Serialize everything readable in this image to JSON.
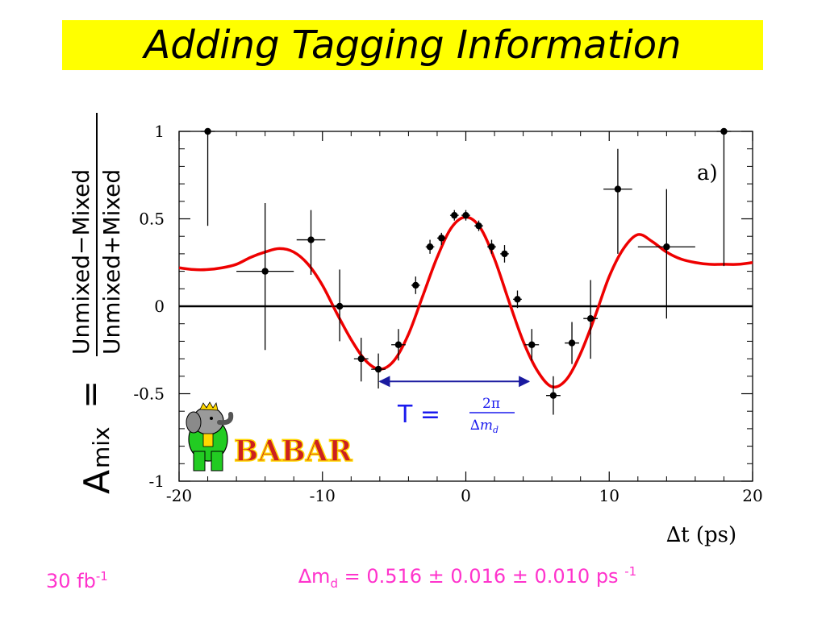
{
  "title": "Adding Tagging Information",
  "footer": {
    "luminosity": "30 fb",
    "luminosity_exp": "-1",
    "dm_symbol": "∆m",
    "dm_sub": "d",
    "dm_value": " = 0.516 ± 0.016 ± 0.010 ps ",
    "dm_exp": "-1"
  },
  "logo_text": "BaBar",
  "colors": {
    "title_bg": "#ffff00",
    "fit": "#ee0000",
    "footer": "#ff33cc",
    "period_arrow": "#1a1aa0",
    "period_text": "#1a1aee"
  },
  "chart_data": {
    "type": "scatter",
    "xlabel": "∆t (ps)",
    "ylabel_prefix": "A",
    "ylabel_sub": "mix",
    "ylabel_equals": "=",
    "ylabel_numerator": "Unmixed−Mixed",
    "ylabel_denominator": "Unmixed+Mixed",
    "panel_label": "a)",
    "xlim": [
      -20,
      20
    ],
    "ylim": [
      -1,
      1
    ],
    "xticks": [
      -20,
      -10,
      0,
      10,
      20
    ],
    "xtick_labels": [
      "-20",
      "-10",
      "0",
      "10",
      "20"
    ],
    "yticks": [
      -1,
      -0.5,
      0,
      0.5,
      1
    ],
    "ytick_labels": [
      "-1",
      "-0.5",
      "0",
      "0.5",
      "1"
    ],
    "zero_line": 0,
    "period_annotation": {
      "text": "T = 2π / ∆m_d",
      "x_start": -6,
      "x_end": 4.4,
      "y": -0.43
    },
    "points": [
      {
        "x": -18.0,
        "y": 1.0,
        "xerr": 0.5,
        "ylo": 0.46,
        "yhi": 1.0
      },
      {
        "x": -14.0,
        "y": 0.2,
        "xerr": 2.0,
        "ylo": -0.25,
        "yhi": 0.59
      },
      {
        "x": -10.8,
        "y": 0.38,
        "xerr": 1.0,
        "ylo": 0.18,
        "yhi": 0.55
      },
      {
        "x": -8.8,
        "y": 0.0,
        "xerr": 0.5,
        "ylo": -0.2,
        "yhi": 0.21
      },
      {
        "x": -7.3,
        "y": -0.3,
        "xerr": 0.5,
        "ylo": -0.43,
        "yhi": -0.18
      },
      {
        "x": -6.1,
        "y": -0.36,
        "xerr": 0.5,
        "ylo": -0.47,
        "yhi": -0.27
      },
      {
        "x": -4.7,
        "y": -0.22,
        "xerr": 0.5,
        "ylo": -0.31,
        "yhi": -0.13
      },
      {
        "x": -3.5,
        "y": 0.12,
        "xerr": 0.3,
        "ylo": 0.07,
        "yhi": 0.17
      },
      {
        "x": -2.5,
        "y": 0.34,
        "xerr": 0.3,
        "ylo": 0.3,
        "yhi": 0.38
      },
      {
        "x": -1.7,
        "y": 0.39,
        "xerr": 0.3,
        "ylo": 0.35,
        "yhi": 0.42
      },
      {
        "x": -0.8,
        "y": 0.52,
        "xerr": 0.3,
        "ylo": 0.49,
        "yhi": 0.55
      },
      {
        "x": 0.0,
        "y": 0.52,
        "xerr": 0.3,
        "ylo": 0.49,
        "yhi": 0.55
      },
      {
        "x": 0.9,
        "y": 0.46,
        "xerr": 0.3,
        "ylo": 0.43,
        "yhi": 0.49
      },
      {
        "x": 1.8,
        "y": 0.34,
        "xerr": 0.3,
        "ylo": 0.3,
        "yhi": 0.38
      },
      {
        "x": 2.7,
        "y": 0.3,
        "xerr": 0.3,
        "ylo": 0.25,
        "yhi": 0.35
      },
      {
        "x": 3.6,
        "y": 0.04,
        "xerr": 0.3,
        "ylo": -0.01,
        "yhi": 0.09
      },
      {
        "x": 4.6,
        "y": -0.22,
        "xerr": 0.5,
        "ylo": -0.31,
        "yhi": -0.13
      },
      {
        "x": 6.1,
        "y": -0.51,
        "xerr": 0.5,
        "ylo": -0.62,
        "yhi": -0.4
      },
      {
        "x": 7.4,
        "y": -0.21,
        "xerr": 0.5,
        "ylo": -0.33,
        "yhi": -0.09
      },
      {
        "x": 8.7,
        "y": -0.07,
        "xerr": 0.5,
        "ylo": -0.3,
        "yhi": 0.15
      },
      {
        "x": 10.6,
        "y": 0.67,
        "xerr": 1.0,
        "ylo": 0.3,
        "yhi": 0.9
      },
      {
        "x": 14.0,
        "y": 0.34,
        "xerr": 2.0,
        "ylo": -0.07,
        "yhi": 0.67
      },
      {
        "x": 18.0,
        "y": 1.0,
        "xerr": 0.5,
        "ylo": 0.23,
        "yhi": 1.0
      }
    ],
    "fit_curve": {
      "x": [
        -20,
        -19,
        -18,
        -17,
        -16,
        -15,
        -14,
        -13,
        -12,
        -11,
        -10,
        -9,
        -8,
        -7,
        -6,
        -5,
        -4,
        -3,
        -2,
        -1,
        0,
        1,
        2,
        3,
        4,
        5,
        6,
        7,
        8,
        9,
        10,
        11,
        12,
        13,
        14,
        15,
        16,
        17,
        18,
        19,
        20
      ],
      "y": [
        0.22,
        0.21,
        0.21,
        0.22,
        0.24,
        0.28,
        0.31,
        0.33,
        0.31,
        0.24,
        0.12,
        -0.04,
        -0.19,
        -0.31,
        -0.36,
        -0.31,
        -0.16,
        0.06,
        0.28,
        0.45,
        0.51,
        0.45,
        0.27,
        0.03,
        -0.2,
        -0.37,
        -0.46,
        -0.42,
        -0.27,
        -0.06,
        0.17,
        0.33,
        0.41,
        0.37,
        0.31,
        0.27,
        0.25,
        0.24,
        0.24,
        0.24,
        0.25
      ]
    }
  }
}
